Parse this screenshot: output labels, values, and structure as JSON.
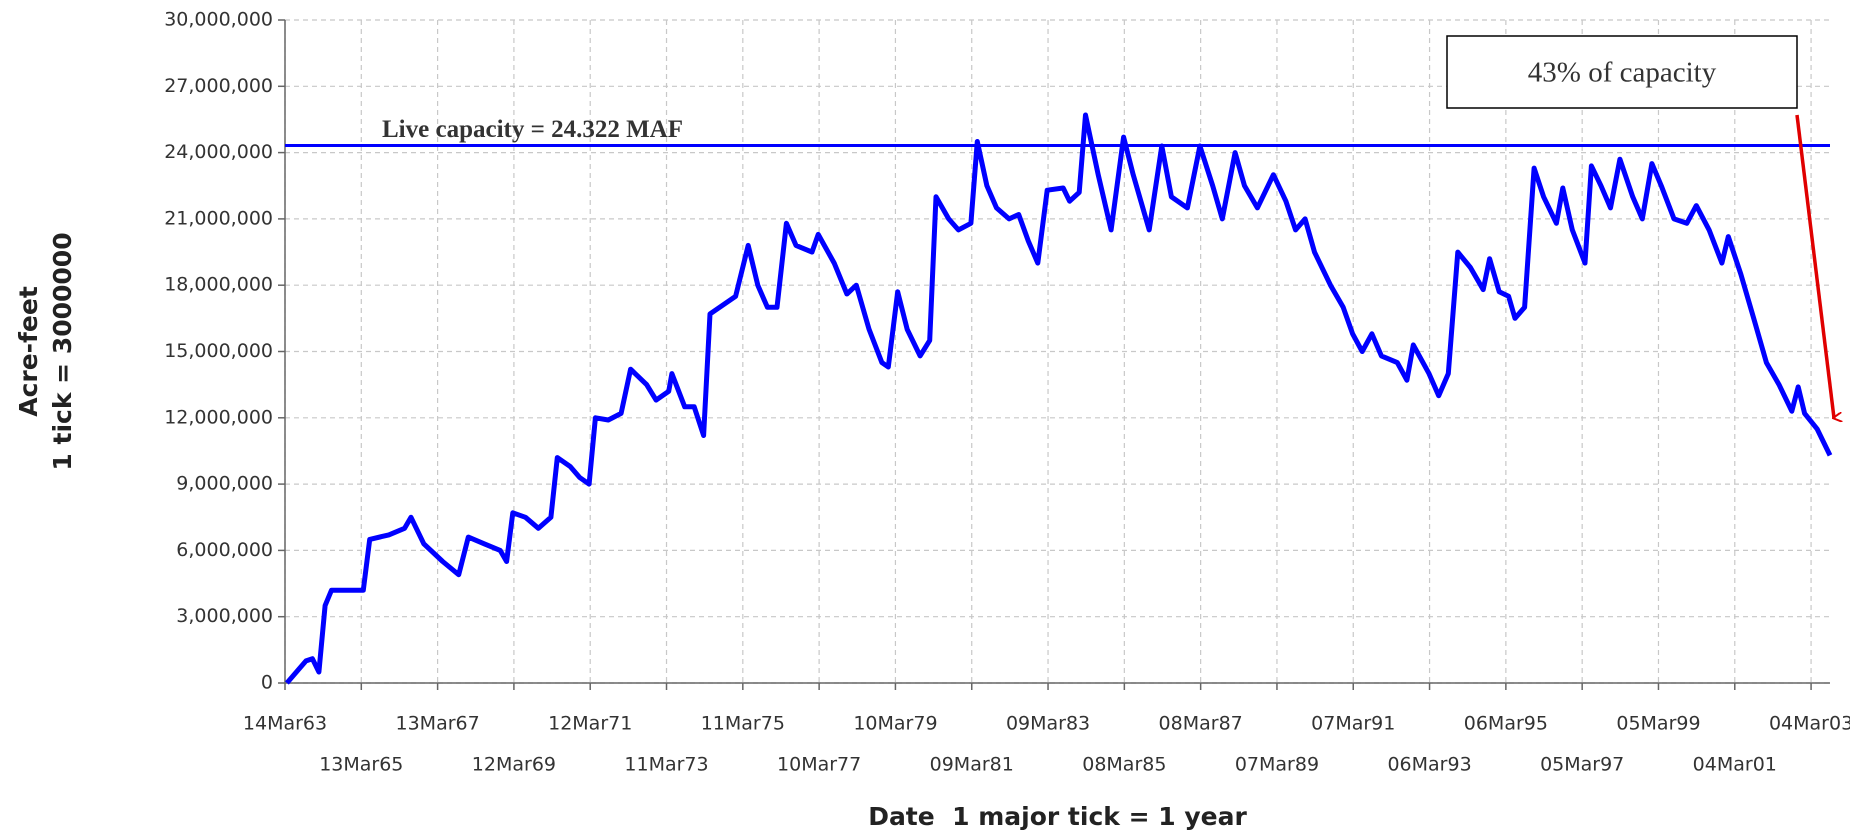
{
  "chart_data": {
    "type": "line",
    "ylabel": [
      "Acre-feet",
      "1 tick = 3000000"
    ],
    "xlabel": "Date  1 major tick = 1 year",
    "color": "#0000ff",
    "grid": true,
    "x": [
      "1963-04",
      "1963-07",
      "1963-10",
      "1963-12",
      "1964-02",
      "1964-04",
      "1964-06",
      "1964-12",
      "1965-04",
      "1965-06",
      "1965-12",
      "1966-05",
      "1966-07",
      "1966-11",
      "1967-05",
      "1967-10",
      "1968-01",
      "1968-06",
      "1968-11",
      "1969-01",
      "1969-03",
      "1969-07",
      "1969-11",
      "1970-03",
      "1970-05",
      "1970-09",
      "1970-12",
      "1971-03",
      "1971-05",
      "1971-09",
      "1972-01",
      "1972-04",
      "1972-09",
      "1972-12",
      "1973-04",
      "1973-05",
      "1973-09",
      "1973-12",
      "1974-03",
      "1974-05",
      "1974-09",
      "1975-01",
      "1975-05",
      "1975-08",
      "1975-11",
      "1976-02",
      "1976-05",
      "1976-08",
      "1977-01",
      "1977-03",
      "1977-08",
      "1977-12",
      "1978-03",
      "1978-07",
      "1978-11",
      "1979-01",
      "1979-04",
      "1979-07",
      "1979-11",
      "1980-02",
      "1980-04",
      "1980-08",
      "1980-11",
      "1981-03",
      "1981-05",
      "1981-08",
      "1981-11",
      "1982-03",
      "1982-06",
      "1982-09",
      "1982-12",
      "1983-03",
      "1983-08",
      "1983-10",
      "1984-01",
      "1984-03",
      "1984-07",
      "1984-11",
      "1985-03",
      "1985-06",
      "1985-11",
      "1986-03",
      "1986-06",
      "1986-11",
      "1987-03",
      "1987-07",
      "1987-10",
      "1988-02",
      "1988-05",
      "1988-09",
      "1989-02",
      "1989-06",
      "1989-09",
      "1989-12",
      "1990-03",
      "1990-08",
      "1990-12",
      "1991-03",
      "1991-06",
      "1991-09",
      "1991-12",
      "1992-05",
      "1992-08",
      "1992-10",
      "1993-03",
      "1993-06",
      "1993-09",
      "1993-12",
      "1994-04",
      "1994-08",
      "1994-10",
      "1995-01",
      "1995-04",
      "1995-06",
      "1995-09",
      "1995-12",
      "1996-03",
      "1996-07",
      "1996-09",
      "1996-12",
      "1997-04",
      "1997-06",
      "1997-09",
      "1997-12",
      "1998-03",
      "1998-07",
      "1998-10",
      "1999-01",
      "1999-04",
      "1999-08",
      "1999-12",
      "2000-03",
      "2000-07",
      "2000-11",
      "2001-01",
      "2001-05",
      "2001-09",
      "2002-01",
      "2002-05",
      "2002-09",
      "2002-11",
      "2003-01",
      "2003-05",
      "2003-09"
    ],
    "values": [
      0,
      500000,
      1000000,
      1100000,
      500000,
      3500000,
      4200000,
      4200000,
      4200000,
      6500000,
      6700000,
      7000000,
      7500000,
      6300000,
      5500000,
      4900000,
      6600000,
      6300000,
      6000000,
      5500000,
      7700000,
      7500000,
      7000000,
      7500000,
      10200000,
      9800000,
      9300000,
      9000000,
      12000000,
      11900000,
      12200000,
      14200000,
      13500000,
      12800000,
      13200000,
      14000000,
      12500000,
      12500000,
      11200000,
      16700000,
      17100000,
      17500000,
      19800000,
      18000000,
      17000000,
      17000000,
      20800000,
      19800000,
      19500000,
      20300000,
      19000000,
      17600000,
      18000000,
      16000000,
      14500000,
      14300000,
      17700000,
      16000000,
      14800000,
      15500000,
      22000000,
      21000000,
      20500000,
      20800000,
      24500000,
      22500000,
      21500000,
      21000000,
      21200000,
      20000000,
      19000000,
      22300000,
      22400000,
      21800000,
      22200000,
      25700000,
      23000000,
      20500000,
      24700000,
      23000000,
      20500000,
      24300000,
      22000000,
      21500000,
      24300000,
      22500000,
      21000000,
      24000000,
      22500000,
      21500000,
      23000000,
      21800000,
      20500000,
      21000000,
      19500000,
      18000000,
      17000000,
      15800000,
      15000000,
      15800000,
      14800000,
      14500000,
      13700000,
      15300000,
      14000000,
      13000000,
      14000000,
      19500000,
      18800000,
      17800000,
      19200000,
      17700000,
      17500000,
      16500000,
      17000000,
      23300000,
      22000000,
      20800000,
      22400000,
      20500000,
      19000000,
      23400000,
      22500000,
      21500000,
      23700000,
      22000000,
      21000000,
      23500000,
      22500000,
      21000000,
      20800000,
      21600000,
      20500000,
      19000000,
      20200000,
      18500000,
      16500000,
      14500000,
      13500000,
      12300000,
      13400000,
      12200000,
      11500000,
      10300000
    ],
    "xlim": [
      "1963-03-14",
      "2003-09"
    ],
    "xticks": [
      {
        "value": "1963-03-14",
        "label": "14Mar63"
      },
      {
        "value": "1965-03-13",
        "label": "13Mar65"
      },
      {
        "value": "1967-03-13",
        "label": "13Mar67"
      },
      {
        "value": "1969-03-12",
        "label": "12Mar69"
      },
      {
        "value": "1971-03-12",
        "label": "12Mar71"
      },
      {
        "value": "1973-03-11",
        "label": "11Mar73"
      },
      {
        "value": "1975-03-11",
        "label": "11Mar75"
      },
      {
        "value": "1977-03-10",
        "label": "10Mar77"
      },
      {
        "value": "1979-03-10",
        "label": "10Mar79"
      },
      {
        "value": "1981-03-09",
        "label": "09Mar81"
      },
      {
        "value": "1983-03-09",
        "label": "09Mar83"
      },
      {
        "value": "1985-03-08",
        "label": "08Mar85"
      },
      {
        "value": "1987-03-08",
        "label": "08Mar87"
      },
      {
        "value": "1989-03-07",
        "label": "07Mar89"
      },
      {
        "value": "1991-03-07",
        "label": "07Mar91"
      },
      {
        "value": "1993-03-06",
        "label": "06Mar93"
      },
      {
        "value": "1995-03-06",
        "label": "06Mar95"
      },
      {
        "value": "1997-03-05",
        "label": "05Mar97"
      },
      {
        "value": "1999-03-05",
        "label": "05Mar99"
      },
      {
        "value": "2001-03-04",
        "label": "04Mar01"
      },
      {
        "value": "2003-03-04",
        "label": "04Mar03"
      }
    ],
    "ylim": [
      0,
      30000000
    ],
    "yticks": [
      0,
      {
        "value": 3000000,
        "label": "3,000,000"
      },
      {
        "value": 6000000,
        "label": "6,000,000"
      },
      {
        "value": 9000000,
        "label": "9,000,000"
      },
      {
        "value": 12000000,
        "label": "12,000,000"
      },
      {
        "value": 15000000,
        "label": "15,000,000"
      },
      {
        "value": 18000000,
        "label": "18,000,000"
      },
      {
        "value": 21000000,
        "label": "21,000,000"
      },
      {
        "value": 24000000,
        "label": "24,000,000"
      },
      {
        "value": 27000000,
        "label": "27,000,000"
      },
      {
        "value": 30000000,
        "label": "30,000,000"
      }
    ],
    "reference_lines": [
      {
        "value": 24322000,
        "label": "Live capacity = 24.322 MAF",
        "color": "#0000ff"
      }
    ],
    "annotations": [
      {
        "text": "43% of capacity",
        "arrow_color": "#e00000"
      }
    ]
  }
}
